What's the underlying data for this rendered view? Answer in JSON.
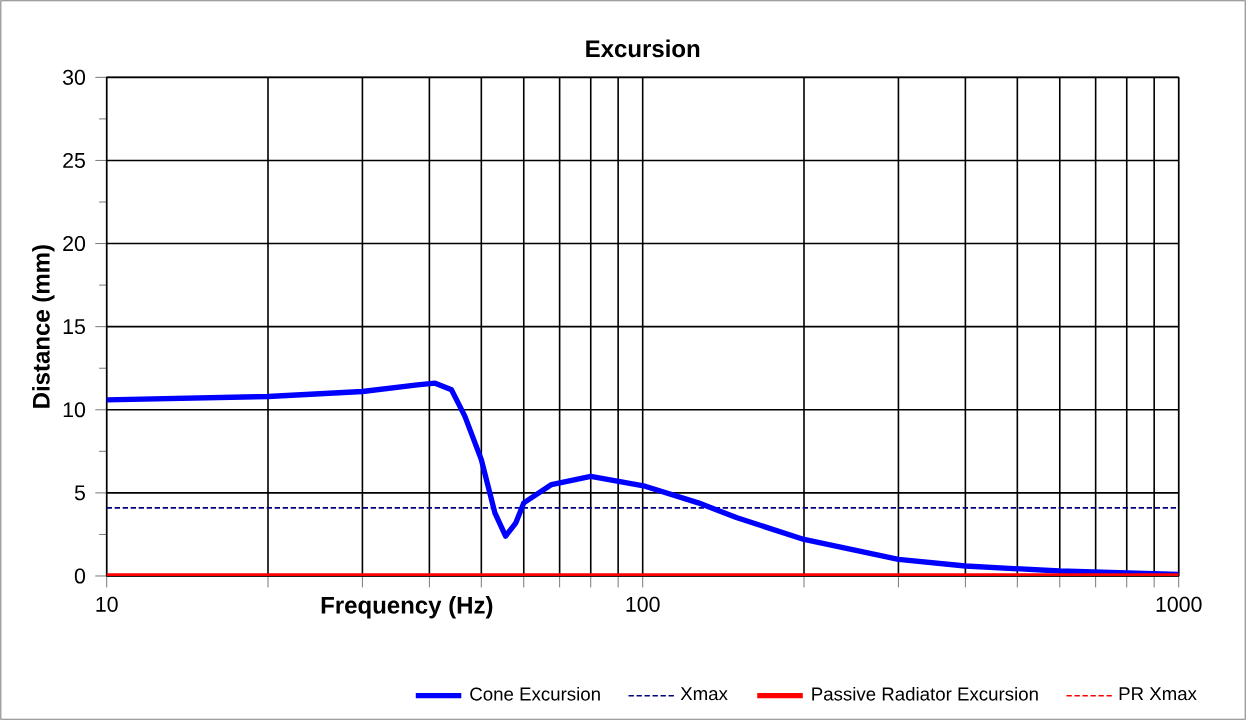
{
  "chart_data": {
    "type": "line",
    "title": "Excursion",
    "xlabel": "Frequency (Hz)",
    "ylabel": "Distance (mm)",
    "log": "x",
    "xlim": [
      10,
      1000
    ],
    "xticks": [
      10,
      {
        "value": 20,
        "label": null
      },
      {
        "value": 30,
        "label": null
      },
      {
        "value": 40,
        "label": null
      },
      {
        "value": 50,
        "label": null
      },
      {
        "value": 60,
        "label": null
      },
      {
        "value": 70,
        "label": null
      },
      {
        "value": 80,
        "label": null
      },
      {
        "value": 90,
        "label": null
      },
      100,
      {
        "value": 200,
        "label": null
      },
      {
        "value": 300,
        "label": null
      },
      {
        "value": 400,
        "label": null
      },
      {
        "value": 500,
        "label": null
      },
      {
        "value": 600,
        "label": null
      },
      {
        "value": 700,
        "label": null
      },
      {
        "value": 800,
        "label": null
      },
      {
        "value": 900,
        "label": null
      },
      1000
    ],
    "ylim": [
      0,
      30
    ],
    "yticks": [
      0,
      5,
      10,
      15,
      20,
      25,
      30
    ],
    "grid": true,
    "legend": "bottom",
    "series": [
      {
        "name": "Cone Excursion",
        "color": "#0000ff",
        "line_style": "solid",
        "x": [
          10,
          20,
          30,
          38,
          41,
          44,
          46.6,
          50,
          53,
          55.5,
          58,
          60,
          67.6,
          80,
          101,
          127,
          150,
          200,
          300,
          400,
          600,
          1000
        ],
        "values": [
          10.6,
          10.8,
          11.1,
          11.5,
          11.6,
          11.2,
          9.6,
          7.0,
          3.8,
          2.4,
          3.2,
          4.4,
          5.5,
          6.0,
          5.4,
          4.4,
          3.5,
          2.2,
          1.0,
          0.6,
          0.3,
          0.1
        ]
      },
      {
        "name": "Xmax",
        "color": "#000080",
        "line_style": "dashed",
        "x": [
          10,
          1000
        ],
        "values": [
          4.1,
          4.1
        ]
      },
      {
        "name": "Passive Radiator Excursion",
        "color": "#ff0000",
        "line_style": "solid",
        "x": [
          10,
          1000
        ],
        "values": [
          0,
          0
        ]
      },
      {
        "name": "PR Xmax",
        "color": "#ff0000",
        "line_style": "dashed",
        "values": [
          null,
          null
        ]
      }
    ]
  }
}
